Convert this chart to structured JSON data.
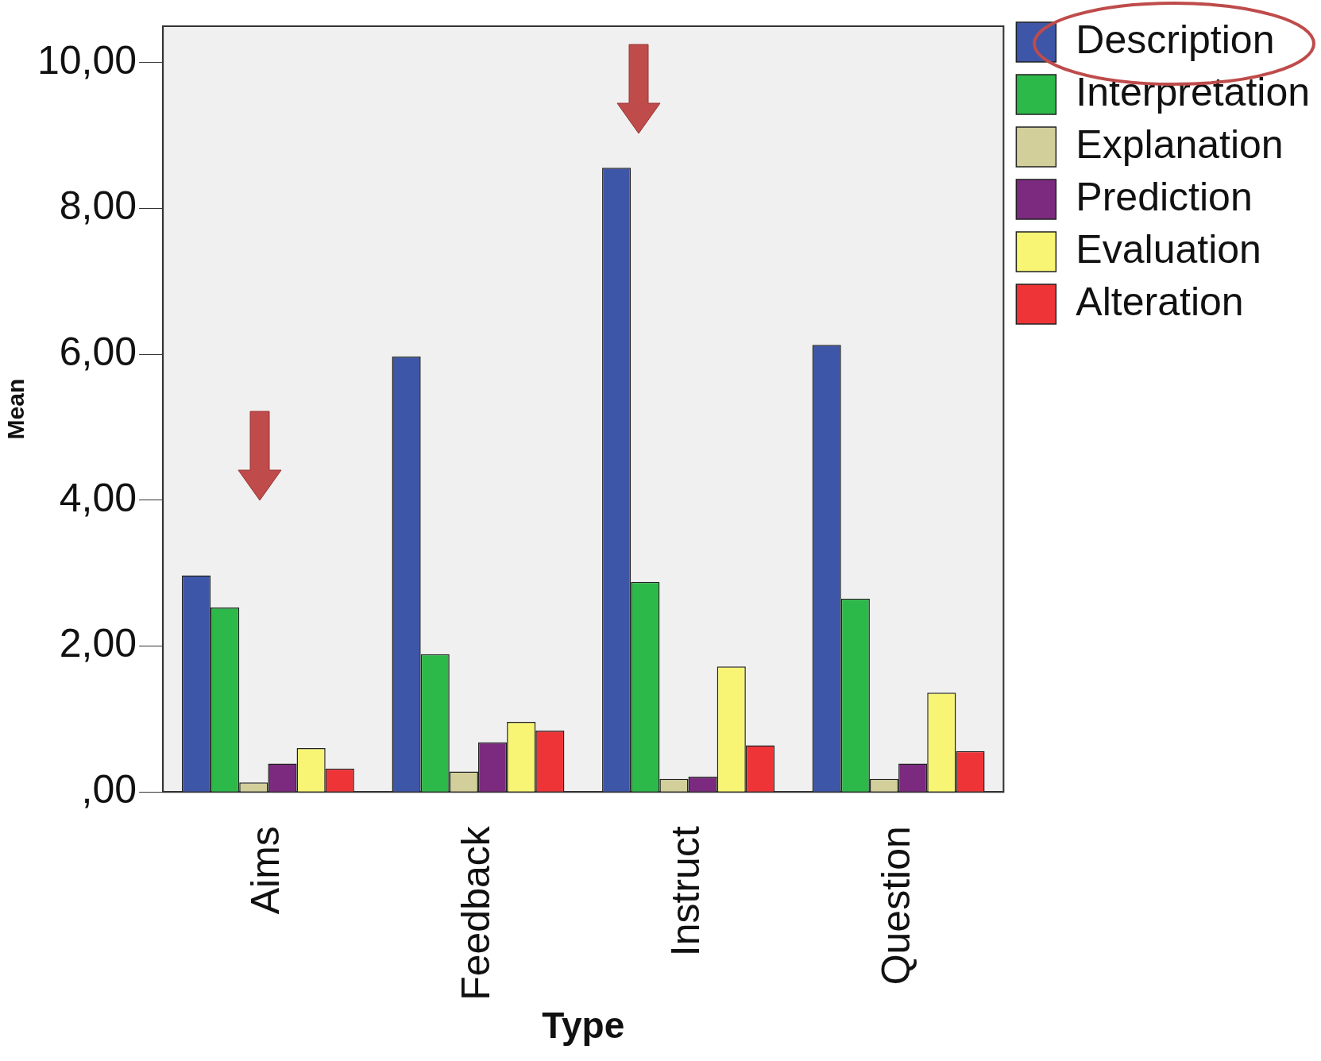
{
  "chart_data": {
    "type": "bar",
    "xlabel": "Type",
    "ylabel": "Mean",
    "categories": [
      "Aims",
      "Feedback",
      "Instruct",
      "Question"
    ],
    "series": [
      {
        "name": "Description",
        "color": "#3d56a8",
        "values": [
          2.97,
          5.97,
          8.56,
          6.13
        ]
      },
      {
        "name": "Interpretation",
        "color": "#2db84a",
        "values": [
          2.53,
          1.89,
          2.88,
          2.65
        ]
      },
      {
        "name": "Explanation",
        "color": "#d3cf9a",
        "values": [
          0.13,
          0.28,
          0.18,
          0.18
        ]
      },
      {
        "name": "Prediction",
        "color": "#7b2a7f",
        "values": [
          0.39,
          0.68,
          0.21,
          0.39
        ]
      },
      {
        "name": "Evaluation",
        "color": "#f8f574",
        "values": [
          0.6,
          0.96,
          1.72,
          1.36
        ]
      },
      {
        "name": "Alteration",
        "color": "#ef3438",
        "values": [
          0.32,
          0.84,
          0.64,
          0.56
        ]
      }
    ],
    "ylim": [
      0,
      10.5
    ],
    "yticks": [
      {
        "value": 0,
        "label": ",00"
      },
      {
        "value": 2,
        "label": "2,00"
      },
      {
        "value": 4,
        "label": "4,00"
      },
      {
        "value": 6,
        "label": "6,00"
      },
      {
        "value": 8,
        "label": "8,00"
      },
      {
        "value": 10,
        "label": "10,00"
      }
    ],
    "grid": false,
    "legend": "top right"
  }
}
